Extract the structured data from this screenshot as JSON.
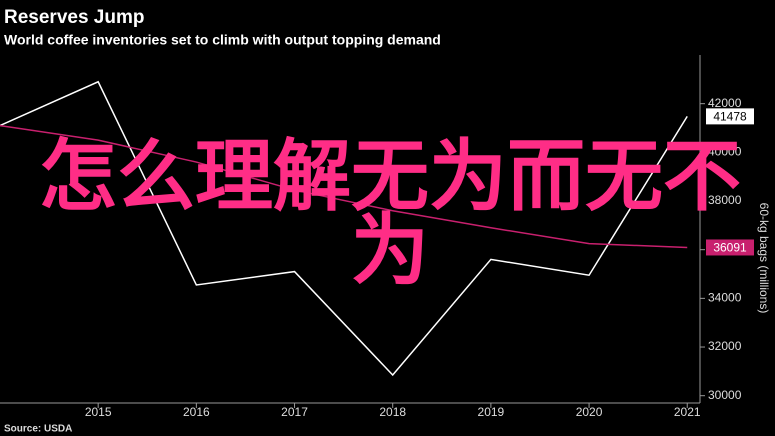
{
  "chart_data": {
    "type": "line",
    "title": "Reserves Jump",
    "subtitle": "World coffee inventories set to climb with output topping demand",
    "y_axis_label": "60-kg bags (millions)",
    "source": "Source: USDA",
    "overlay_text": "怎么理解无为而无不为",
    "x": [
      2014,
      2015,
      2016,
      2017,
      2018,
      2019,
      2020,
      2021
    ],
    "xlim": [
      2014,
      2021.13
    ],
    "xticks": [
      2015,
      2016,
      2017,
      2018,
      2019,
      2020,
      2021
    ],
    "ylim": [
      29700,
      44000
    ],
    "yticks": [
      30000,
      32000,
      34000,
      36000,
      38000,
      40000,
      42000
    ],
    "series": [
      {
        "color": "#ffffff",
        "values": [
          41100,
          42900,
          34550,
          35100,
          30850,
          35600,
          34950,
          41478
        ]
      },
      {
        "color": "#c8206e",
        "values": [
          41100,
          40500,
          39600,
          38450,
          37600,
          36900,
          36250,
          36091
        ]
      }
    ]
  }
}
